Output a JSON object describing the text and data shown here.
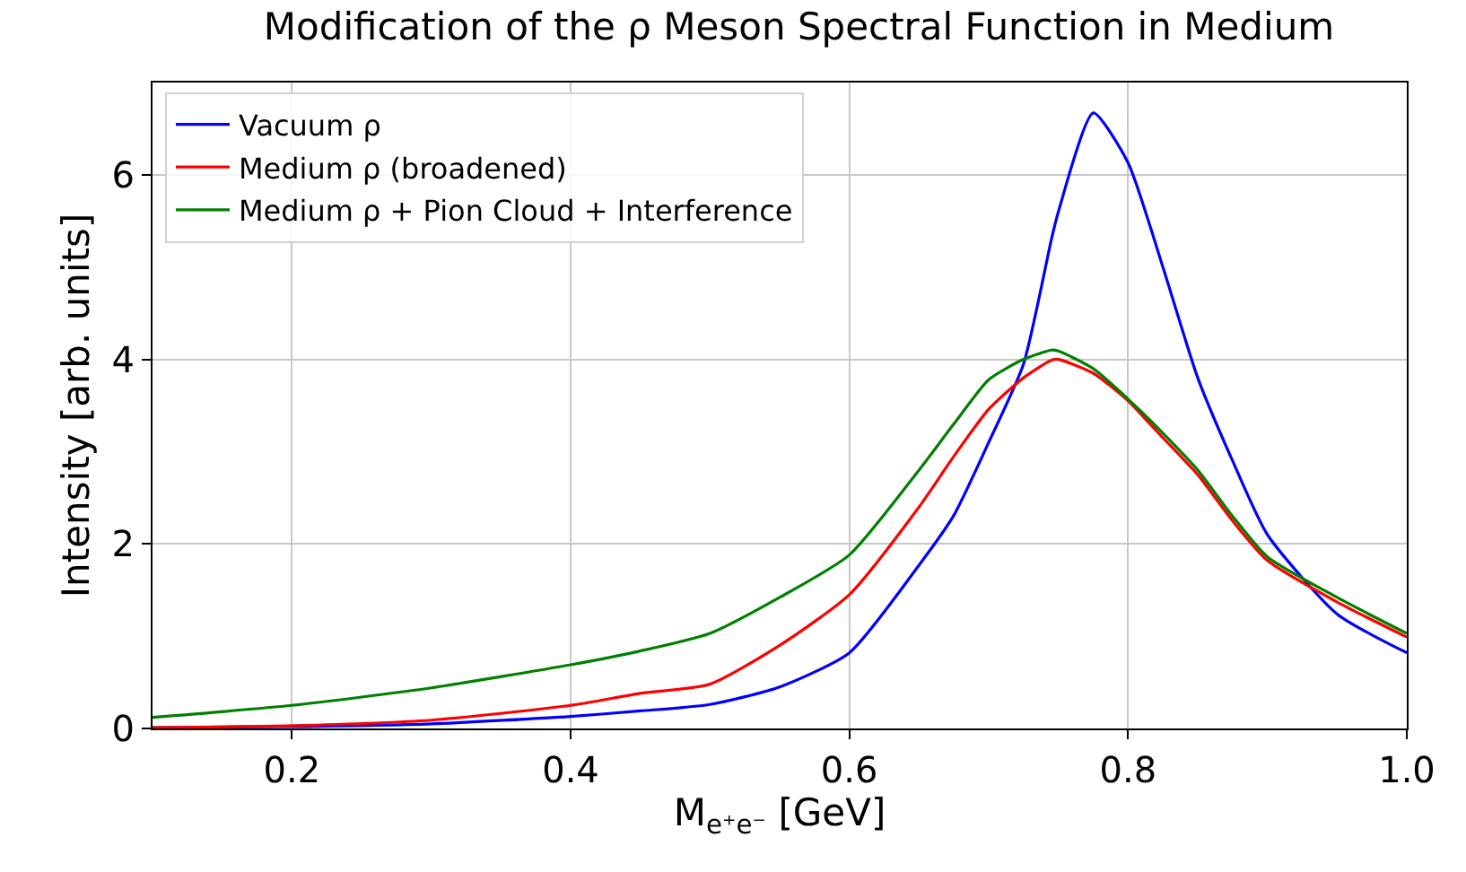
{
  "chart_data": {
    "type": "line",
    "title": "Modification of the ρ Meson Spectral Function in Medium",
    "xlabel": "M$_{e⁺e⁻}$ [GeV]",
    "ylabel": "Intensity [arb. units]",
    "xlim": [
      0.1,
      1.0
    ],
    "ylim": [
      0,
      7.0
    ],
    "xticks": [
      0.2,
      0.4,
      0.6,
      0.8,
      {
        "value": 1.0,
        "label": "1.0"
      }
    ],
    "yticks": [
      0,
      2,
      4,
      6
    ],
    "grid": true,
    "legend": "top left",
    "marker": "none",
    "line_style": "solid",
    "x": [
      0.1,
      0.2,
      0.3,
      0.4,
      0.45,
      0.5,
      0.55,
      0.6,
      0.65,
      0.675,
      0.7,
      0.725,
      0.745,
      0.75,
      0.775,
      0.8,
      0.825,
      0.85,
      0.875,
      0.9,
      0.95,
      1.0
    ],
    "series": [
      {
        "name": "Vacuum ρ",
        "color": "#0000ff",
        "values": [
          0.01,
          0.02,
          0.05,
          0.13,
          0.19,
          0.26,
          0.45,
          0.82,
          1.77,
          2.31,
          3.1,
          3.95,
          5.3,
          5.6,
          6.67,
          6.13,
          5.0,
          3.8,
          2.9,
          2.1,
          1.24,
          0.82
        ]
      },
      {
        "name": "Medium ρ (broadened)",
        "color": "#ff0000",
        "values": [
          0.01,
          0.03,
          0.09,
          0.25,
          0.38,
          0.48,
          0.9,
          1.45,
          2.4,
          2.95,
          3.46,
          3.8,
          3.99,
          4.0,
          3.85,
          3.55,
          3.15,
          2.75,
          2.25,
          1.82,
          1.37,
          0.99
        ]
      },
      {
        "name": "Medium ρ + Pion Cloud + Interference",
        "color": "#008000",
        "values": [
          0.12,
          0.25,
          0.44,
          0.69,
          0.84,
          1.03,
          1.42,
          1.88,
          2.8,
          3.3,
          3.78,
          4.0,
          4.1,
          4.09,
          3.9,
          3.57,
          3.2,
          2.8,
          2.3,
          1.86,
          1.42,
          1.03
        ]
      }
    ]
  }
}
